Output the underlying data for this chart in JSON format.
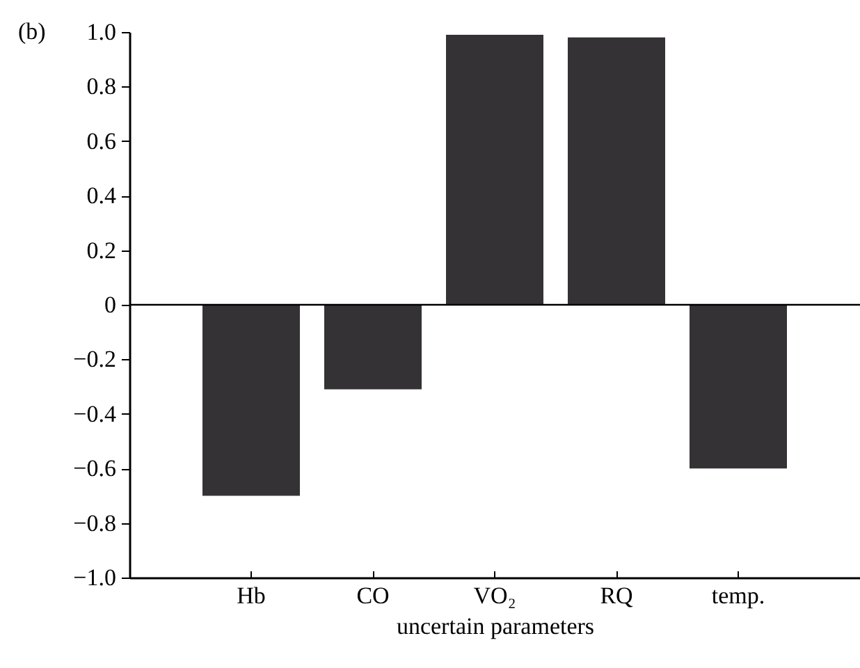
{
  "chart_data": {
    "type": "bar",
    "title": "(b)",
    "xlabel": "uncertain parameters",
    "categories": [
      "Hb",
      "CO",
      "VO₂",
      "RQ",
      "temp."
    ],
    "values": [
      -0.7,
      -0.31,
      0.99,
      0.98,
      -0.6
    ],
    "color": "#343235",
    "ylim": [
      -1,
      1
    ],
    "yticks": [
      {
        "value": -1,
        "label": "−1.0"
      },
      {
        "value": -0.8,
        "label": "−0.8"
      },
      {
        "value": -0.6,
        "label": "−0.6"
      },
      {
        "value": -0.4,
        "label": "−0.4"
      },
      {
        "value": -0.2,
        "label": "−0.2"
      },
      0,
      {
        "value": 0.2,
        "label": "0.2"
      },
      {
        "value": 0.4,
        "label": "0.4"
      },
      {
        "value": 0.6,
        "label": "0.6"
      },
      {
        "value": 0.8,
        "label": "0.8"
      },
      {
        "value": 1,
        "label": "1.0"
      }
    ],
    "ref_lines": [
      {
        "axis": "y",
        "value": 0,
        "color": "#000000"
      }
    ],
    "grid": false
  }
}
